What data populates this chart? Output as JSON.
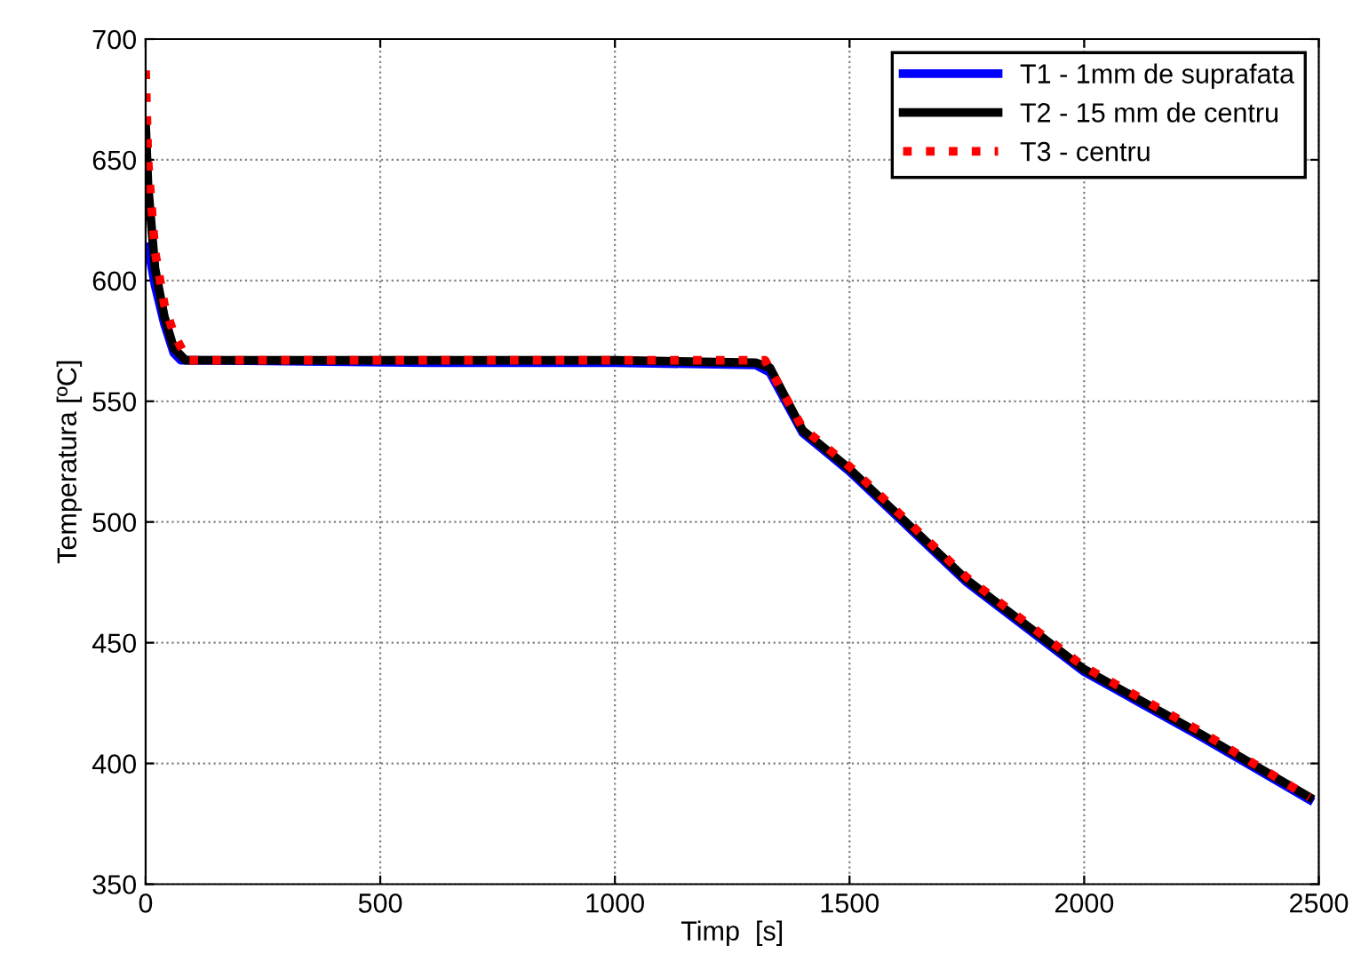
{
  "chart_data": {
    "type": "line",
    "xlabel": "Timp  [s]",
    "ylabel": "Temperatura [ºC]",
    "xlim": [
      0,
      2500
    ],
    "ylim": [
      350,
      700
    ],
    "xticks": [
      0,
      500,
      1000,
      1500,
      2000,
      2500
    ],
    "yticks": [
      350,
      400,
      450,
      500,
      550,
      600,
      650,
      700
    ],
    "grid": true,
    "legend": "top right",
    "series": [
      {
        "name": "T1 - 1mm de suprafata",
        "color": "#0000ff",
        "line_style": "solid",
        "x": [
          5,
          20,
          40,
          60,
          75,
          100,
          600,
          1000,
          1300,
          1330,
          1400,
          1500,
          1750,
          2000,
          2250,
          2480
        ],
        "values": [
          614,
          598,
          582,
          570,
          567,
          567,
          566,
          566,
          565,
          562,
          537,
          521,
          475,
          438,
          411,
          385
        ]
      },
      {
        "name": "T2 - 15 mm de centru",
        "color": "#000000",
        "line_style": "solid",
        "x": [
          0,
          5,
          20,
          40,
          60,
          85,
          100,
          600,
          1000,
          1300,
          1330,
          1400,
          1500,
          1750,
          2000,
          2250,
          2480
        ],
        "values": [
          665,
          640,
          605,
          585,
          572,
          567,
          567,
          567,
          567,
          566,
          564,
          538,
          522,
          476,
          439,
          412,
          386
        ]
      },
      {
        "name": "T3 - centru",
        "color": "#ff0000",
        "line_style": "dotted",
        "x": [
          0,
          5,
          20,
          40,
          60,
          90,
          100,
          600,
          1000,
          1300,
          1320,
          1400,
          1500,
          1750,
          2000,
          2250,
          2480
        ],
        "values": [
          687,
          650,
          612,
          590,
          578,
          567,
          567,
          567,
          567,
          567,
          567,
          539,
          523,
          477,
          440,
          413,
          386
        ]
      }
    ]
  }
}
